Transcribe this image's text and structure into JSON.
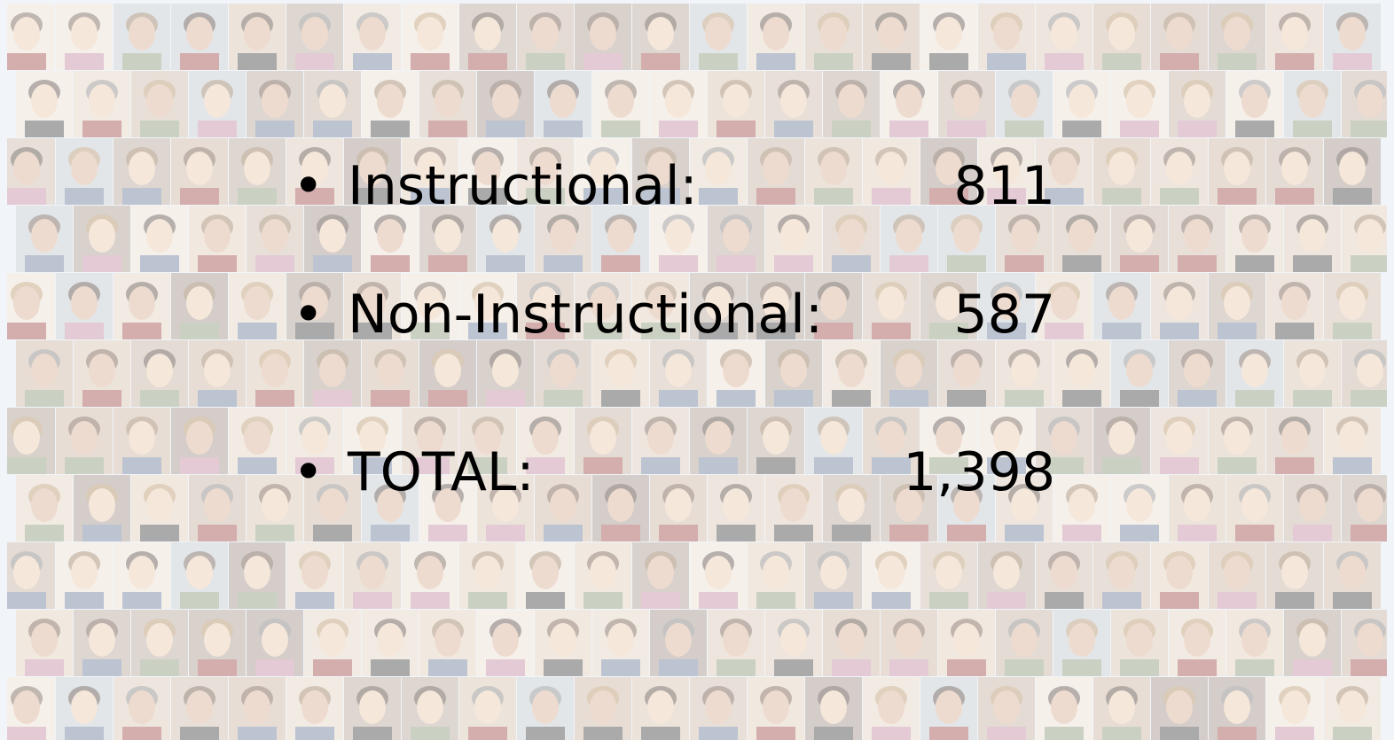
{
  "items": [
    {
      "label": "Instructional:",
      "value": "811"
    },
    {
      "label": "Non-Instructional:",
      "value": "587"
    },
    {
      "label": "TOTAL:",
      "value": "1,398"
    }
  ]
}
